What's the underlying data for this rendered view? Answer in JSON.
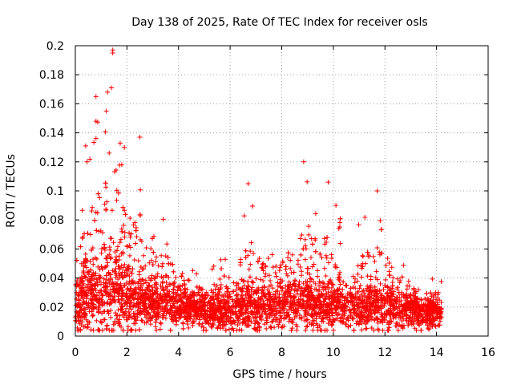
{
  "chart_data": {
    "type": "scatter",
    "title": "Day 138 of 2025, Rate Of TEC Index for receiver osls",
    "xlabel": "GPS time / hours",
    "ylabel": "ROTI / TECUs",
    "xlim": [
      0,
      16
    ],
    "ylim": [
      0,
      0.2
    ],
    "xticks": [
      "0",
      "2",
      "4",
      "6",
      "8",
      "10",
      "12",
      "14",
      "16"
    ],
    "yticks": [
      "0",
      "0.02",
      "0.04",
      "0.06",
      "0.08",
      "0.1",
      "0.12",
      "0.14",
      "0.16",
      "0.18",
      "0.2"
    ],
    "grid": true,
    "marker": "+",
    "color": "#ff0000",
    "data_extent_hours": [
      0,
      14.2
    ],
    "series": [
      {
        "name": "ROTI",
        "notable_points": [
          {
            "x": 1.45,
            "y": 0.197
          },
          {
            "x": 1.45,
            "y": 0.195
          },
          {
            "x": 1.4,
            "y": 0.171
          },
          {
            "x": 1.25,
            "y": 0.168
          },
          {
            "x": 0.8,
            "y": 0.165
          },
          {
            "x": 1.2,
            "y": 0.155
          },
          {
            "x": 0.8,
            "y": 0.148
          },
          {
            "x": 2.5,
            "y": 0.137
          },
          {
            "x": 0.4,
            "y": 0.131
          },
          {
            "x": 1.9,
            "y": 0.13
          },
          {
            "x": 8.85,
            "y": 0.12
          },
          {
            "x": 0.45,
            "y": 0.12
          },
          {
            "x": 1.8,
            "y": 0.118
          },
          {
            "x": 6.7,
            "y": 0.105
          },
          {
            "x": 9.8,
            "y": 0.106
          },
          {
            "x": 11.7,
            "y": 0.1
          },
          {
            "x": 10.1,
            "y": 0.09
          }
        ],
        "profile": [
          {
            "x": 0.0,
            "base": 0.022,
            "spread": 0.014,
            "peak": 0.07
          },
          {
            "x": 0.5,
            "base": 0.028,
            "spread": 0.02,
            "peak": 0.13
          },
          {
            "x": 1.0,
            "base": 0.03,
            "spread": 0.022,
            "peak": 0.165
          },
          {
            "x": 1.5,
            "base": 0.03,
            "spread": 0.022,
            "peak": 0.197
          },
          {
            "x": 2.0,
            "base": 0.028,
            "spread": 0.018,
            "peak": 0.13
          },
          {
            "x": 2.5,
            "base": 0.025,
            "spread": 0.015,
            "peak": 0.137
          },
          {
            "x": 3.0,
            "base": 0.022,
            "spread": 0.012,
            "peak": 0.09
          },
          {
            "x": 3.5,
            "base": 0.022,
            "spread": 0.012,
            "peak": 0.085
          },
          {
            "x": 4.0,
            "base": 0.02,
            "spread": 0.01,
            "peak": 0.065
          },
          {
            "x": 5.0,
            "base": 0.018,
            "spread": 0.009,
            "peak": 0.045
          },
          {
            "x": 6.0,
            "base": 0.018,
            "spread": 0.01,
            "peak": 0.066
          },
          {
            "x": 6.7,
            "base": 0.02,
            "spread": 0.012,
            "peak": 0.105
          },
          {
            "x": 7.5,
            "base": 0.02,
            "spread": 0.012,
            "peak": 0.07
          },
          {
            "x": 8.5,
            "base": 0.022,
            "spread": 0.013,
            "peak": 0.09
          },
          {
            "x": 8.9,
            "base": 0.022,
            "spread": 0.014,
            "peak": 0.12
          },
          {
            "x": 9.8,
            "base": 0.022,
            "spread": 0.013,
            "peak": 0.106
          },
          {
            "x": 10.5,
            "base": 0.02,
            "spread": 0.012,
            "peak": 0.07
          },
          {
            "x": 11.7,
            "base": 0.02,
            "spread": 0.012,
            "peak": 0.1
          },
          {
            "x": 12.5,
            "base": 0.018,
            "spread": 0.01,
            "peak": 0.06
          },
          {
            "x": 13.3,
            "base": 0.017,
            "spread": 0.009,
            "peak": 0.04
          },
          {
            "x": 14.2,
            "base": 0.016,
            "spread": 0.008,
            "peak": 0.042
          }
        ]
      }
    ]
  }
}
